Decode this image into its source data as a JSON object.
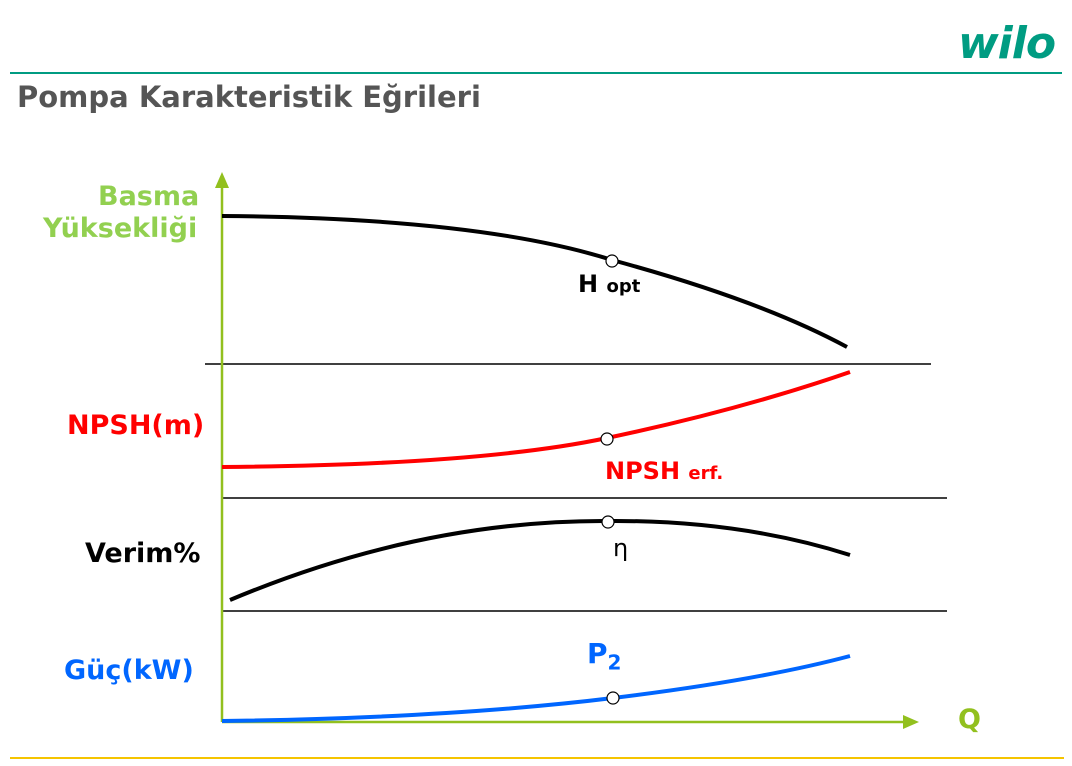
{
  "logo": {
    "text": "wilo"
  },
  "title": "Pompa Karakteristik Eğrileri",
  "colors": {
    "brand_teal": "#009c82",
    "head_label": "#92d050",
    "axis": "#92c01e",
    "npsh": "#ff0000",
    "efficiency": "#000000",
    "power": "#0066ff",
    "footer_rule": "#f5c400",
    "title_gray": "#555555"
  },
  "panels": {
    "head": {
      "label_line1": "Basma",
      "label_line2": "Yüksekliği",
      "curve_label_main": "H",
      "curve_label_sub": "opt"
    },
    "npsh": {
      "label": "NPSH(m)",
      "curve_label_main": "NPSH",
      "curve_label_sub": "erf."
    },
    "efficiency": {
      "label": "Verim%",
      "curve_label": "η"
    },
    "power": {
      "label": "Güç(kW)",
      "curve_label_main": "P",
      "curve_label_sub": "2"
    }
  },
  "axis": {
    "x_label": "Q",
    "x_arrow_icon": "arrow-right-icon",
    "y_arrow_icon": "arrow-up-icon"
  }
}
